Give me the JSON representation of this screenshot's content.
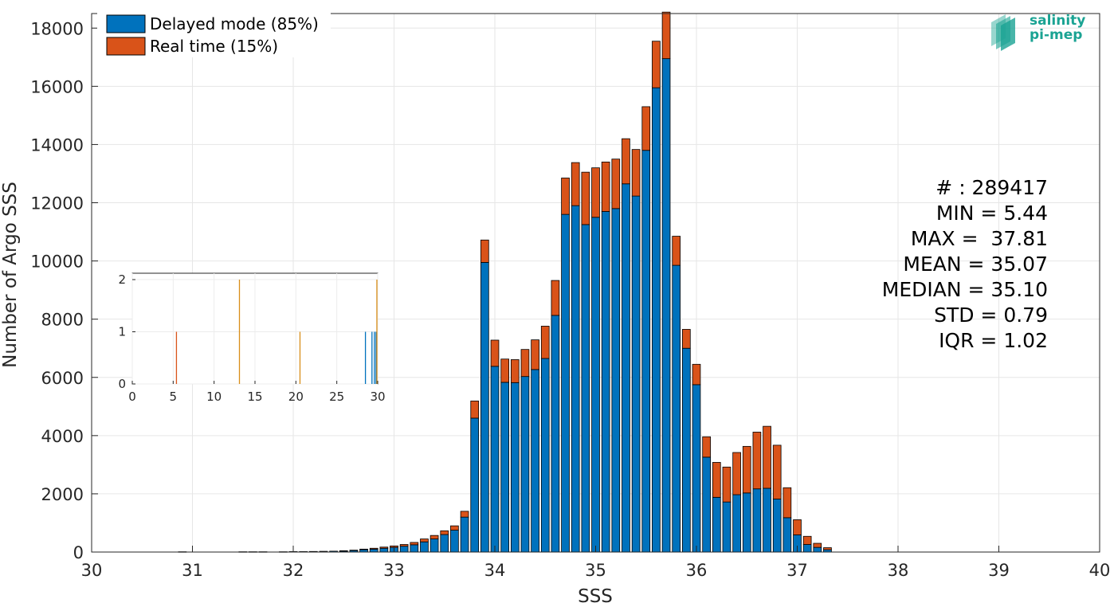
{
  "chart_data": {
    "type": "bar",
    "stacked": true,
    "xlabel": "SSS",
    "ylabel": "Number of Argo SSS",
    "xlim": [
      30,
      40
    ],
    "ylim": [
      0,
      18500
    ],
    "xticks": [
      30,
      31,
      32,
      33,
      34,
      35,
      36,
      37,
      38,
      39,
      40
    ],
    "yticks": [
      0,
      2000,
      4000,
      6000,
      8000,
      10000,
      12000,
      14000,
      16000,
      18000
    ],
    "grid": true,
    "legend_position": "top-left",
    "bin_width": 0.1,
    "x": [
      30.9,
      31.5,
      31.6,
      31.7,
      31.9,
      32.0,
      32.1,
      32.2,
      32.3,
      32.4,
      32.5,
      32.6,
      32.7,
      32.8,
      32.9,
      33.0,
      33.1,
      33.2,
      33.3,
      33.4,
      33.5,
      33.6,
      33.7,
      33.8,
      33.9,
      34.0,
      34.1,
      34.2,
      34.3,
      34.4,
      34.5,
      34.6,
      34.7,
      34.8,
      34.9,
      35.0,
      35.1,
      35.2,
      35.3,
      35.4,
      35.5,
      35.6,
      35.7,
      35.8,
      35.9,
      36.0,
      36.1,
      36.2,
      36.3,
      36.4,
      36.5,
      36.6,
      36.7,
      36.8,
      36.9,
      37.0,
      37.1,
      37.2,
      37.3
    ],
    "series": [
      {
        "name": "Delayed mode (85%)",
        "color": "#0072BD",
        "values": [
          10,
          10,
          10,
          10,
          10,
          15,
          15,
          20,
          25,
          30,
          40,
          55,
          80,
          100,
          130,
          160,
          200,
          250,
          350,
          450,
          600,
          750,
          1200,
          4600,
          9950,
          6380,
          5830,
          5820,
          6030,
          6270,
          6650,
          8130,
          11600,
          11900,
          11250,
          11500,
          11700,
          11800,
          12650,
          12230,
          13800,
          15950,
          16950,
          9850,
          7000,
          5750,
          3260,
          1880,
          1720,
          1970,
          2030,
          2170,
          2190,
          1820,
          1180,
          590,
          260,
          160,
          80
        ]
      },
      {
        "name": "Real time (15%)",
        "color": "#D95319",
        "values": [
          0,
          0,
          0,
          0,
          0,
          0,
          0,
          0,
          0,
          0,
          5,
          10,
          20,
          30,
          40,
          50,
          60,
          80,
          100,
          120,
          130,
          150,
          200,
          590,
          770,
          900,
          800,
          790,
          930,
          1020,
          1110,
          1200,
          1250,
          1480,
          1800,
          1700,
          1700,
          1700,
          1550,
          1600,
          1500,
          1600,
          1600,
          1000,
          650,
          700,
          700,
          1200,
          1200,
          1450,
          1600,
          1950,
          2130,
          1850,
          1030,
          520,
          280,
          140,
          70
        ]
      }
    ],
    "inset": {
      "xlim": [
        0,
        30
      ],
      "ylim": [
        0,
        2
      ],
      "xticks": [
        0,
        5,
        10,
        15,
        20,
        25,
        30
      ],
      "yticks": [
        0,
        1,
        2
      ],
      "grid": true,
      "lines": [
        {
          "x": 5.4,
          "value": 1,
          "color": "#D95319"
        },
        {
          "x": 13.1,
          "value": 2,
          "color": "#D98E19"
        },
        {
          "x": 20.5,
          "value": 1,
          "color": "#D98E19"
        },
        {
          "x": 28.5,
          "value": 1,
          "color": "#0072BD"
        },
        {
          "x": 29.3,
          "value": 1,
          "color": "#0072BD"
        },
        {
          "x": 29.6,
          "value": 1,
          "color": "#0072BD"
        },
        {
          "x": 29.8,
          "value": 1,
          "color": "#0072BD"
        },
        {
          "x": 29.9,
          "value": 2,
          "color": "#D98E19"
        }
      ]
    }
  },
  "stats": [
    "# : 289417",
    "MIN = 5.44",
    "MAX =  37.81",
    "MEAN = 35.07",
    "MEDIAN = 35.10",
    "STD = 0.79",
    "IQR = 1.02"
  ],
  "logo": {
    "line1": "salinity",
    "line2": "pi-mep",
    "color": "#1AA393"
  }
}
